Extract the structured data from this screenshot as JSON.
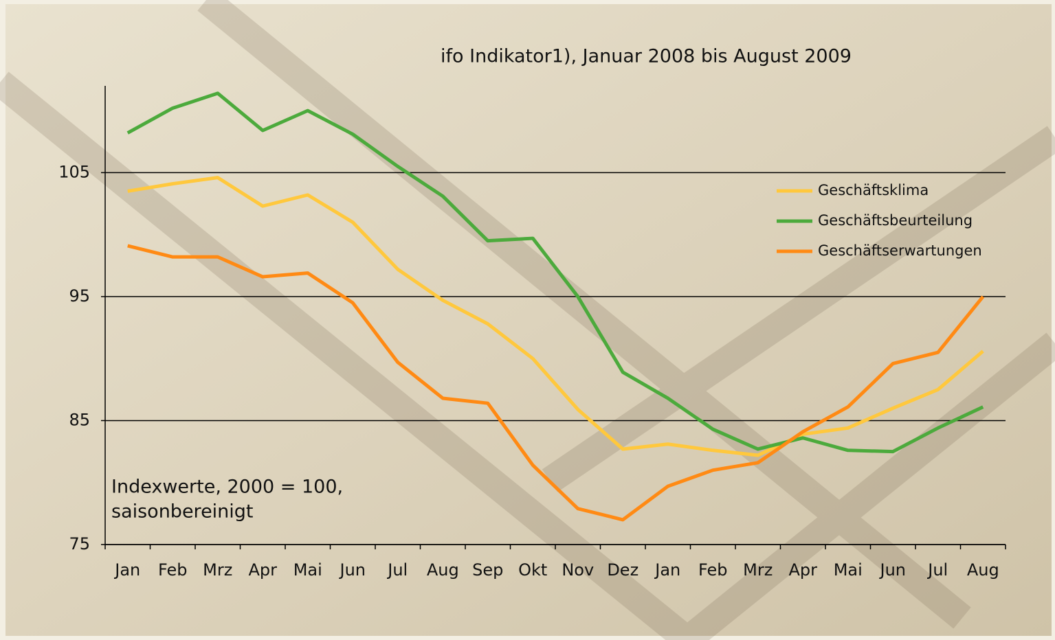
{
  "chart_data": {
    "type": "line",
    "title": "ifo Indikator1), Januar 2008 bis August 2009",
    "annotation": [
      "Indexwerte, 2000 = 100,",
      "saisonbereinigt"
    ],
    "categories": [
      "Jan",
      "Feb",
      "Mrz",
      "Apr",
      "Mai",
      "Jun",
      "Jul",
      "Aug",
      "Sep",
      "Okt",
      "Nov",
      "Dez",
      "Jan",
      "Feb",
      "Mrz",
      "Apr",
      "Mai",
      "Jun",
      "Jul",
      "Aug"
    ],
    "series": [
      {
        "name": "Geschäftsklima",
        "color": "#ffc83d",
        "values": [
          103.5,
          104.1,
          104.6,
          102.3,
          103.2,
          101.0,
          97.2,
          94.7,
          92.8,
          90.0,
          85.9,
          82.7,
          83.1,
          82.6,
          82.2,
          83.9,
          84.4,
          86.0,
          87.5,
          90.6
        ]
      },
      {
        "name": "Geschäftsbeurteilung",
        "color": "#4caa3c",
        "values": [
          108.2,
          110.2,
          111.4,
          108.4,
          110.0,
          108.1,
          105.5,
          103.1,
          99.5,
          99.7,
          95.0,
          88.9,
          86.8,
          84.3,
          82.7,
          83.6,
          82.6,
          82.5,
          84.4,
          86.1
        ]
      },
      {
        "name": "Geschäftserwartungen",
        "color": "#ff8a14",
        "values": [
          99.1,
          98.2,
          98.2,
          96.6,
          96.9,
          94.5,
          89.7,
          86.8,
          86.4,
          81.4,
          77.9,
          77.0,
          79.7,
          81.0,
          81.6,
          84.1,
          86.1,
          89.6,
          90.5,
          95.0
        ]
      }
    ],
    "ylim": [
      75,
      112
    ],
    "yticks": [
      75,
      85,
      95,
      105
    ],
    "grid": true
  }
}
